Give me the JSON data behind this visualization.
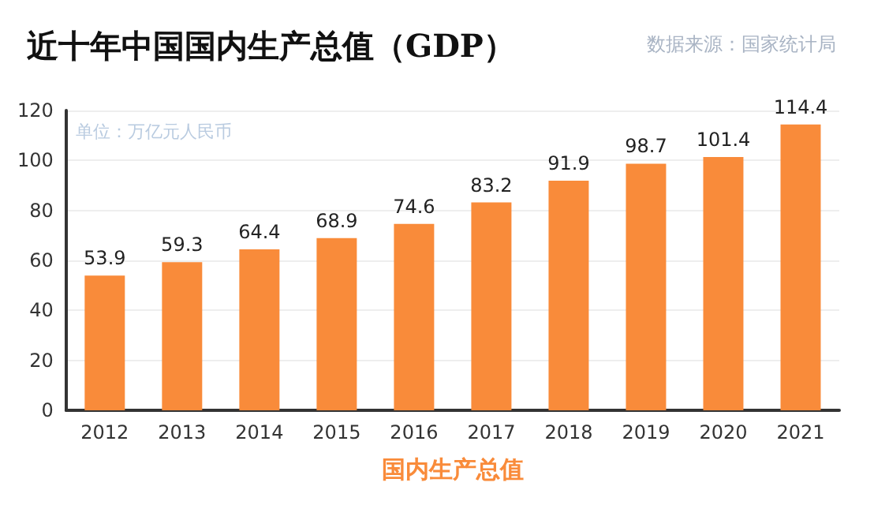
{
  "chart_data": {
    "type": "bar",
    "title": "近十年中国国内生产总值（GDP）",
    "xlabel": "国内生产总值",
    "annotations": [
      "数据来源：国家统计局",
      "单位：万亿元人民币"
    ],
    "categories": [
      "2012",
      "2013",
      "2014",
      "2015",
      "2016",
      "2017",
      "2018",
      "2019",
      "2020",
      "2021"
    ],
    "values": [
      53.9,
      59.3,
      64.4,
      68.9,
      74.6,
      83.2,
      91.9,
      98.7,
      101.4,
      114.4
    ],
    "color": "#f98b3a",
    "data_labels": true,
    "ylim": [
      0,
      120
    ],
    "yticks": [
      0,
      20,
      40,
      60,
      80,
      100,
      120
    ],
    "grid": "y"
  }
}
